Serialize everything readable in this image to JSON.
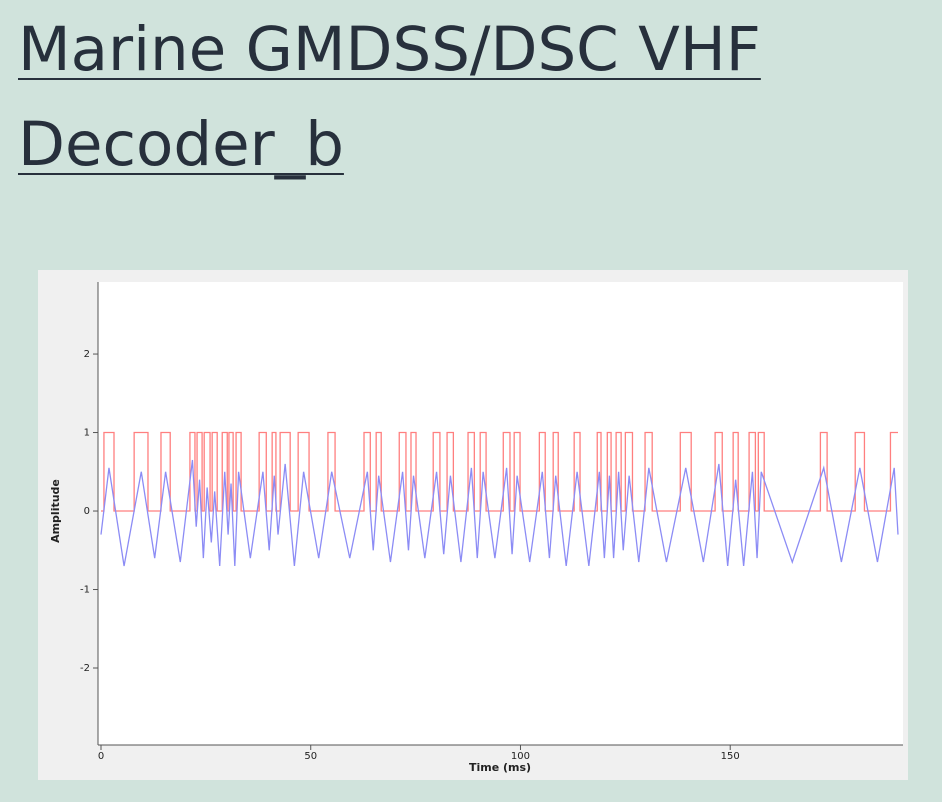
{
  "heading": "Marine GMDSS/DSC VHF Decoder_b",
  "chart_data": {
    "type": "line",
    "xlabel": "Time (ms)",
    "ylabel": "Amplitude",
    "xlim": [
      0,
      190
    ],
    "ylim": [
      -3,
      2.9
    ],
    "xticks": [
      0,
      50,
      100,
      150
    ],
    "yticks": [
      -2,
      -1,
      0,
      1,
      2
    ],
    "series": [
      {
        "color": "#ff7f7f",
        "x": [
          0,
          0.7,
          0.7,
          3.1,
          3.1,
          7.9,
          7.9,
          11.2,
          11.2,
          14.3,
          14.3,
          16.5,
          16.5,
          21.2,
          21.2,
          22.4,
          22.4,
          22.9,
          22.9,
          24.1,
          24.1,
          24.6,
          24.6,
          26.0,
          26.0,
          26.5,
          26.5,
          27.7,
          27.7,
          28.9,
          28.9,
          30.1,
          30.1,
          30.5,
          30.5,
          31.5,
          31.5,
          32.2,
          32.2,
          33.4,
          33.4,
          37.7,
          37.7,
          39.4,
          39.4,
          40.8,
          40.8,
          41.7,
          41.7,
          42.7,
          42.7,
          45.1,
          45.1,
          47.0,
          47.0,
          49.6,
          49.6,
          54.1,
          54.1,
          55.8,
          55.8,
          62.7,
          62.7,
          64.2,
          64.2,
          65.6,
          65.6,
          66.8,
          66.8,
          71.1,
          71.1,
          72.7,
          72.7,
          73.9,
          73.9,
          75.1,
          75.1,
          79.2,
          79.2,
          80.8,
          80.8,
          82.5,
          82.5,
          84.0,
          84.0,
          87.5,
          87.5,
          89.0,
          89.0,
          90.4,
          90.4,
          91.8,
          91.8,
          95.9,
          95.9,
          97.5,
          97.5,
          98.5,
          98.5,
          99.9,
          99.9,
          104.5,
          104.5,
          105.9,
          105.9,
          107.8,
          107.8,
          109.0,
          109.0,
          112.8,
          112.8,
          114.2,
          114.2,
          118.3,
          118.3,
          119.2,
          119.2,
          120.7,
          120.7,
          121.6,
          121.6,
          122.8,
          122.8,
          124.0,
          124.0,
          125.0,
          125.0,
          126.7,
          126.7,
          129.7,
          129.7,
          131.4,
          131.4,
          138.1,
          138.1,
          140.7,
          140.7,
          146.4,
          146.4,
          148.1,
          148.1,
          150.7,
          150.7,
          151.9,
          151.9,
          154.5,
          154.5,
          156.0,
          156.0,
          156.7,
          156.7,
          158.1,
          158.1,
          171.5,
          171.5,
          173.1,
          173.1,
          179.8,
          179.8,
          182.0,
          182.0,
          188.2,
          188.2,
          190
        ],
        "values": [
          0,
          0,
          1,
          1,
          0,
          0,
          1,
          1,
          0,
          0,
          1,
          1,
          0,
          0,
          1,
          1,
          0,
          0,
          1,
          1,
          0,
          0,
          1,
          1,
          0,
          0,
          1,
          1,
          0,
          0,
          1,
          1,
          0,
          0,
          1,
          1,
          0,
          0,
          1,
          1,
          0,
          0,
          1,
          1,
          0,
          0,
          1,
          1,
          0,
          0,
          1,
          1,
          0,
          0,
          1,
          1,
          0,
          0,
          1,
          1,
          0,
          0,
          1,
          1,
          0,
          0,
          1,
          1,
          0,
          0,
          1,
          1,
          0,
          0,
          1,
          1,
          0,
          0,
          1,
          1,
          0,
          0,
          1,
          1,
          0,
          0,
          1,
          1,
          0,
          0,
          1,
          1,
          0,
          0,
          1,
          1,
          0,
          0,
          1,
          1,
          0,
          0,
          1,
          1,
          0,
          0,
          1,
          1,
          0,
          0,
          1,
          1,
          0,
          0,
          1,
          1,
          0,
          0,
          1,
          1,
          0,
          0,
          1,
          1,
          0,
          0,
          1,
          1,
          0,
          0,
          1,
          1,
          0,
          0,
          1,
          1,
          0,
          0,
          1,
          1,
          0,
          0,
          1,
          1,
          0,
          0,
          1,
          1,
          0,
          0,
          1,
          1,
          0,
          0,
          1,
          1,
          0,
          0,
          1,
          1,
          0,
          0,
          1,
          1
        ]
      },
      {
        "color": "#8c8cf5",
        "x": [
          0,
          1.9,
          5.5,
          9.6,
          12.8,
          15.4,
          18.9,
          21.8,
          22.7,
          23.5,
          24.4,
          25.3,
          26.3,
          27.1,
          28.3,
          29.5,
          30.3,
          31.0,
          31.9,
          32.8,
          35.6,
          38.6,
          40.1,
          41.3,
          42.2,
          43.9,
          46.1,
          48.3,
          51.9,
          55.0,
          59.3,
          63.5,
          64.9,
          66.2,
          69.0,
          71.9,
          73.3,
          74.5,
          77.2,
          80.0,
          81.7,
          83.3,
          85.8,
          88.3,
          89.7,
          91.1,
          93.9,
          96.7,
          98.0,
          99.2,
          102.2,
          105.2,
          106.9,
          108.4,
          110.9,
          113.5,
          116.3,
          118.8,
          120.0,
          121.2,
          122.2,
          123.4,
          124.5,
          125.9,
          128.2,
          130.6,
          134.8,
          139.4,
          143.6,
          147.3,
          149.4,
          151.3,
          153.2,
          155.3,
          156.4,
          157.4,
          164.8,
          172.3,
          176.5,
          180.9,
          185.1,
          189.1,
          190
        ],
        "values": [
          -0.3,
          0.55,
          -0.7,
          0.5,
          -0.6,
          0.5,
          -0.65,
          0.65,
          -0.2,
          0.4,
          -0.6,
          0.3,
          -0.4,
          0.25,
          -0.7,
          0.5,
          -0.3,
          0.35,
          -0.7,
          0.5,
          -0.6,
          0.5,
          -0.5,
          0.45,
          -0.3,
          0.6,
          -0.7,
          0.5,
          -0.6,
          0.5,
          -0.6,
          0.5,
          -0.5,
          0.45,
          -0.65,
          0.5,
          -0.5,
          0.45,
          -0.6,
          0.5,
          -0.55,
          0.45,
          -0.65,
          0.55,
          -0.6,
          0.5,
          -0.6,
          0.55,
          -0.55,
          0.45,
          -0.65,
          0.5,
          -0.6,
          0.45,
          -0.7,
          0.5,
          -0.7,
          0.5,
          -0.6,
          0.45,
          -0.6,
          0.5,
          -0.5,
          0.45,
          -0.65,
          0.55,
          -0.65,
          0.55,
          -0.65,
          0.6,
          -0.7,
          0.4,
          -0.7,
          0.5,
          -0.6,
          0.5,
          -0.65,
          0.55,
          -0.65,
          0.55,
          -0.65,
          0.55,
          -0.3
        ]
      }
    ]
  }
}
